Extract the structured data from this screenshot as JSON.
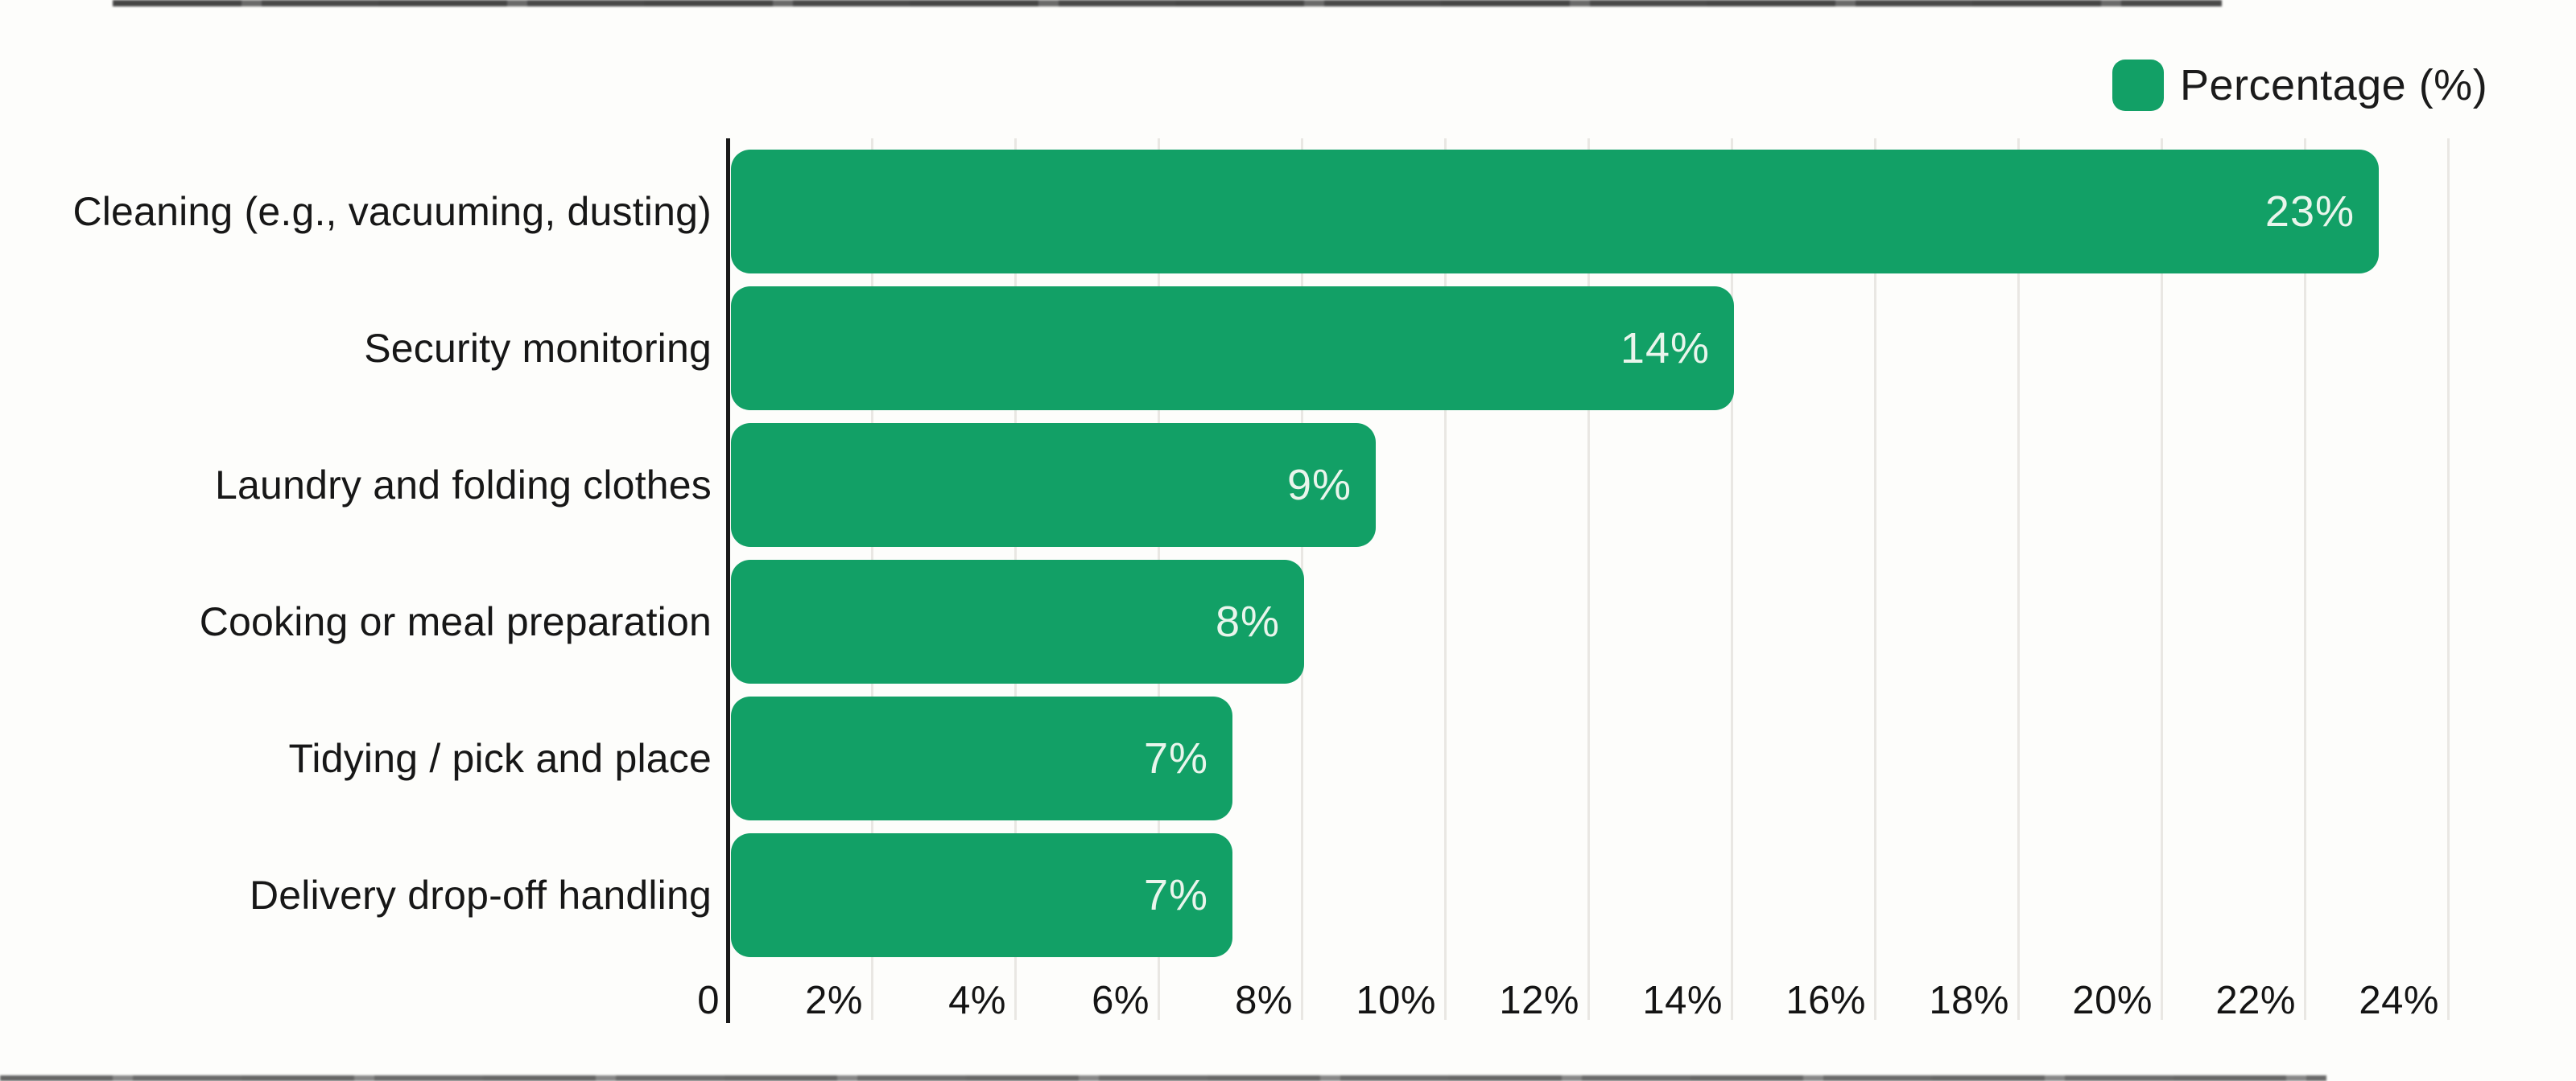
{
  "chart_data": {
    "type": "bar",
    "orientation": "horizontal",
    "categories": [
      "Cleaning (e.g., vacuuming, dusting)",
      "Security monitoring",
      "Laundry and folding clothes",
      "Cooking or meal preparation",
      "Tidying / pick and place",
      "Delivery drop-off handling"
    ],
    "series": [
      {
        "name": "Percentage (%)",
        "values": [
          23,
          14,
          9,
          8,
          7,
          7
        ]
      }
    ],
    "value_labels": [
      "23%",
      "14%",
      "9%",
      "8%",
      "7%",
      "7%"
    ],
    "x_tick_labels": [
      "0",
      "2%",
      "4%",
      "6%",
      "8%",
      "10%",
      "12%",
      "14%",
      "16%",
      "18%",
      "20%",
      "22%",
      "24%"
    ],
    "xlim": [
      0,
      24
    ],
    "x_tick_step": 2,
    "grid": "vertical-light-gray-behind-bars",
    "legend_position": "top-right",
    "bar_color": "#12a066",
    "bar_value_label_color": "#e9f5ec",
    "axis_line_color": "#191919",
    "gridline_color": "#e9e7e3",
    "text_color": "#1b1b1b",
    "background_color": "#fdfdfb"
  },
  "legend": {
    "label": "Percentage (%)",
    "swatch_color": "#12a066"
  }
}
